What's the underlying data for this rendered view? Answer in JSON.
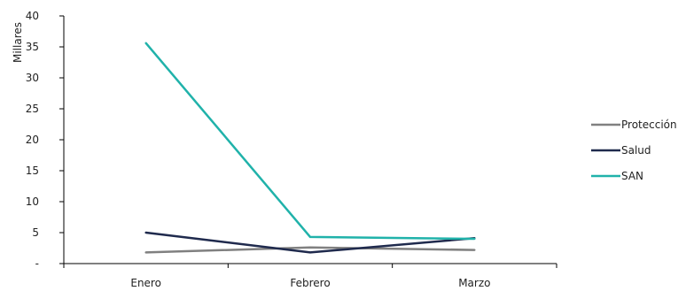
{
  "chart_data": {
    "type": "line",
    "title": "",
    "xlabel": "",
    "ylabel": "Millares",
    "categories": [
      "Enero",
      "Febrero",
      "Marzo"
    ],
    "y_tick_labels": [
      "-",
      "5",
      "10",
      "15",
      "20",
      "25",
      "30",
      "35",
      "40"
    ],
    "y_ticks": [
      0,
      5,
      10,
      15,
      20,
      25,
      30,
      35,
      40
    ],
    "ylim": [
      0,
      40
    ],
    "grid": false,
    "legend_position": "right",
    "series": [
      {
        "name": "Protección",
        "color": "#808080",
        "values": [
          1.8,
          2.6,
          2.2
        ]
      },
      {
        "name": "Salud",
        "color": "#1f2a4d",
        "values": [
          5.0,
          1.8,
          4.1
        ]
      },
      {
        "name": "SAN",
        "color": "#20b2aa",
        "values": [
          35.6,
          4.3,
          4.0
        ]
      }
    ]
  }
}
